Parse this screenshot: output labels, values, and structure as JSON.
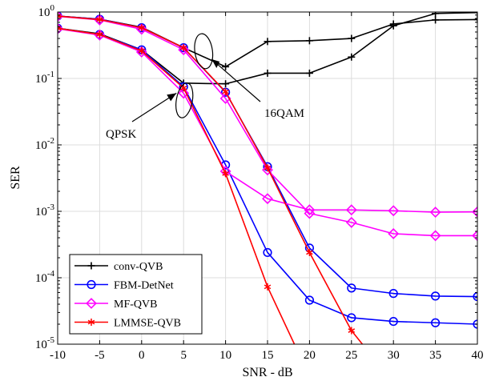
{
  "chart_data": {
    "type": "line",
    "xlabel": "SNR - dB",
    "ylabel": "SER",
    "xlim": [
      -10,
      40
    ],
    "ylim": [
      1e-05,
      1
    ],
    "y_scale": "log",
    "grid": true,
    "legend_position": "bottom-left",
    "x_ticks": [
      "-10",
      "-5",
      "0",
      "5",
      "10",
      "15",
      "20",
      "25",
      "30",
      "35",
      "40"
    ],
    "y_ticks": [
      {
        "base": "10",
        "exp": "0"
      },
      {
        "base": "10",
        "exp": "-1"
      },
      {
        "base": "10",
        "exp": "-2"
      },
      {
        "base": "10",
        "exp": "-3"
      },
      {
        "base": "10",
        "exp": "-4"
      },
      {
        "base": "10",
        "exp": "-5"
      }
    ],
    "legend": [
      "conv-QVB",
      "FBM-DetNet",
      "MF-QVB",
      "LMMSE-QVB"
    ],
    "series_styles": [
      {
        "color": "#000000",
        "marker": "plus"
      },
      {
        "color": "#0000ff",
        "marker": "circle"
      },
      {
        "color": "#ff00ff",
        "marker": "diamond"
      },
      {
        "color": "#ff0000",
        "marker": "asterisk"
      }
    ],
    "series": [
      {
        "legend_index": 0,
        "group": "QPSK",
        "x": [
          -10,
          -5,
          0,
          5,
          10,
          15,
          20,
          25,
          30,
          35,
          40
        ],
        "y": [
          0.57,
          0.47,
          0.27,
          0.085,
          0.083,
          0.12,
          0.12,
          0.21,
          0.62,
          0.95,
          0.98
        ]
      },
      {
        "legend_index": 0,
        "group": "16QAM",
        "x": [
          -10,
          -5,
          0,
          5,
          10,
          15,
          20,
          25,
          30,
          35,
          40
        ],
        "y": [
          0.87,
          0.78,
          0.59,
          0.29,
          0.15,
          0.36,
          0.37,
          0.4,
          0.66,
          0.76,
          0.77
        ]
      },
      {
        "legend_index": 1,
        "group": "QPSK",
        "x": [
          -10,
          -5,
          0,
          5,
          10,
          15,
          20,
          25,
          30,
          35,
          40
        ],
        "y": [
          0.57,
          0.46,
          0.27,
          0.075,
          0.005,
          0.00024,
          4.6e-05,
          2.5e-05,
          2.2e-05,
          2.1e-05,
          2e-05
        ]
      },
      {
        "legend_index": 1,
        "group": "16QAM",
        "x": [
          -10,
          -5,
          0,
          5,
          10,
          15,
          20,
          25,
          30,
          35,
          40
        ],
        "y": [
          0.87,
          0.78,
          0.58,
          0.29,
          0.062,
          0.0047,
          0.00028,
          7e-05,
          5.8e-05,
          5.3e-05,
          5.2e-05
        ]
      },
      {
        "legend_index": 2,
        "group": "QPSK",
        "x": [
          -10,
          -5,
          0,
          5,
          10,
          15,
          20,
          25,
          30,
          35,
          40
        ],
        "y": [
          0.56,
          0.45,
          0.25,
          0.06,
          0.004,
          0.00155,
          0.00105,
          0.00105,
          0.00102,
          0.00097,
          0.00098
        ]
      },
      {
        "legend_index": 2,
        "group": "16QAM",
        "x": [
          -10,
          -5,
          0,
          5,
          10,
          15,
          20,
          25,
          30,
          35,
          40
        ],
        "y": [
          0.86,
          0.76,
          0.55,
          0.27,
          0.05,
          0.0042,
          0.00093,
          0.00068,
          0.00046,
          0.00043,
          0.00043
        ]
      },
      {
        "legend_index": 3,
        "group": "QPSK",
        "x": [
          -10,
          -5,
          0,
          5,
          10,
          15,
          18.2
        ],
        "y": [
          0.57,
          0.46,
          0.26,
          0.072,
          0.0037,
          7.3e-05,
          1e-05
        ]
      },
      {
        "legend_index": 3,
        "group": "16QAM",
        "x": [
          -10,
          -5,
          0,
          5,
          10,
          15,
          20,
          25,
          26.3
        ],
        "y": [
          0.87,
          0.77,
          0.58,
          0.29,
          0.063,
          0.0045,
          0.00024,
          1.6e-05,
          1e-05
        ]
      }
    ],
    "annotations": [
      {
        "text": "QPSK",
        "target_x": 5,
        "target_y": 0.075
      },
      {
        "text": "16QAM",
        "target_x": 7.2,
        "target_y": 0.25
      }
    ]
  }
}
